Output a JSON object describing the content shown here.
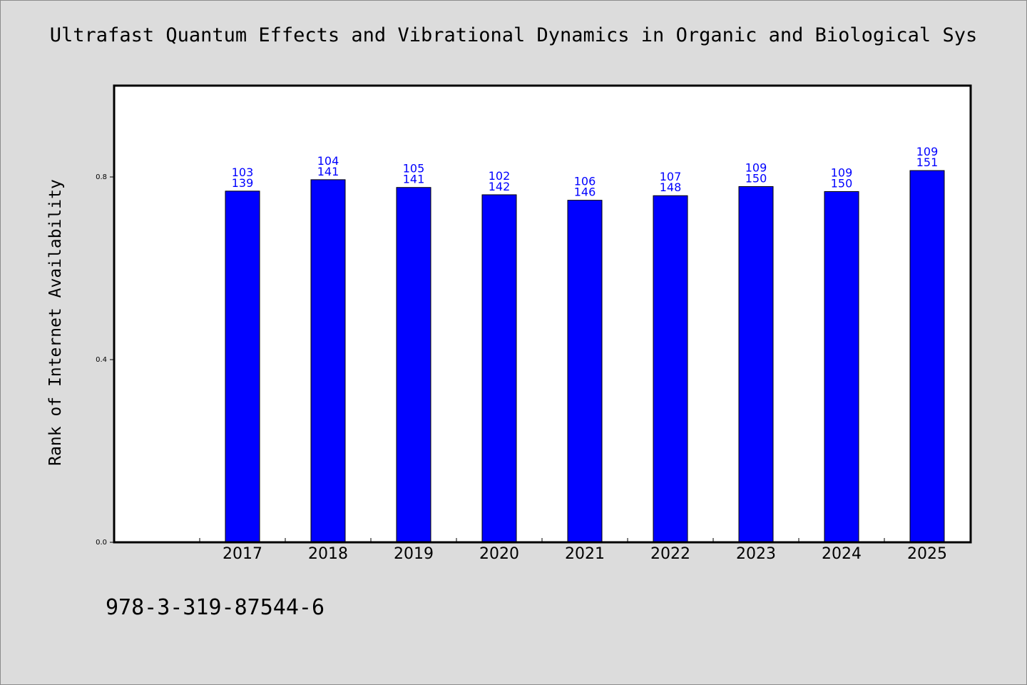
{
  "chart_data": {
    "type": "bar",
    "title": "Ultrafast Quantum Effects and Vibrational Dynamics in Organic and Biological Sys",
    "ylabel": "Rank of Internet Availability",
    "xlabel": "",
    "ylim": [
      0,
      1.0
    ],
    "yticks": [
      {
        "value": 0.0,
        "label": "0.0"
      },
      {
        "value": 0.4,
        "label": "0.4"
      },
      {
        "value": 0.8,
        "label": "0.8"
      }
    ],
    "categories": [
      "2017",
      "2018",
      "2019",
      "2020",
      "2021",
      "2022",
      "2023",
      "2024",
      "2025"
    ],
    "values": [
      0.769,
      0.794,
      0.777,
      0.761,
      0.749,
      0.759,
      0.779,
      0.768,
      0.814
    ],
    "label_top": [
      "103",
      "104",
      "105",
      "102",
      "106",
      "107",
      "109",
      "109",
      "109"
    ],
    "label_bottom": [
      "139",
      "141",
      "141",
      "142",
      "146",
      "148",
      "150",
      "150",
      "151"
    ],
    "bar_color": "#0000ff",
    "label_color": "#0000ff",
    "grid": false,
    "legend": "none"
  },
  "footer": {
    "isbn": "978-3-319-87544-6"
  }
}
